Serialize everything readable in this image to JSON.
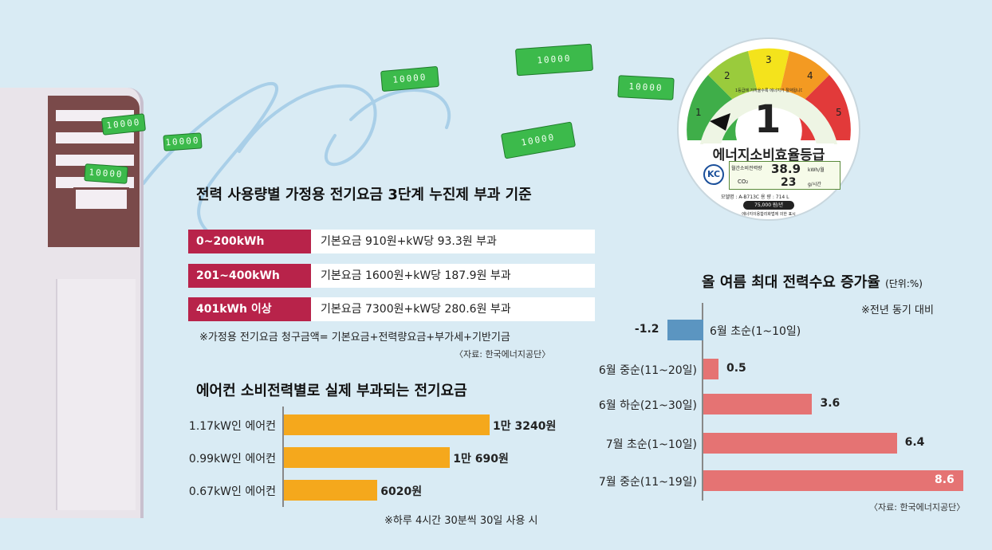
{
  "tariff": {
    "title": "전력 사용량별 가정용 전기요금 3단계 누진제 부과 기준",
    "tiers": [
      {
        "range": "0~200kWh",
        "desc": "기본요금 910원+kW당 93.3원 부과"
      },
      {
        "range": "201~400kWh",
        "desc": "기본요금 1600원+kW당 187.9원 부과"
      },
      {
        "range": "401kWh 이상",
        "desc": "기본요금 7300원+kW당 280.6원 부과"
      }
    ],
    "note": "※가정용 전기요금 청구금액= 기본요금+전력량요금+부가세+기반기금",
    "source": "〈자료: 한국에너지공단〉"
  },
  "ac_chart": {
    "title": "에어컨 소비전력별로 실제 부과되는 전기요금",
    "note": "※하루 4시간 30분씩 30일 사용 시"
  },
  "demand_chart": {
    "title": "올 여름 최대 전력수요 증가율",
    "unit": "(단위:%)",
    "subnote": "※전년 동기 대비",
    "source": "〈자료: 한국에너지공단〉"
  },
  "label": {
    "grades": [
      "1",
      "2",
      "3",
      "4",
      "5"
    ],
    "grade_colors": [
      "#3fae49",
      "#9acb3c",
      "#f4e31c",
      "#f39a22",
      "#e23a3a"
    ],
    "big_grade": "1",
    "arc_text": "1등급에 가까울수록 에너지가 절약됩니다.",
    "name": "에너지소비효율등급",
    "kc": "KC",
    "row1_label": "월간소비전력량",
    "row1_value": "38.9",
    "row1_unit": "kWh/월",
    "row2_label": "CO₂",
    "row2_value": "23",
    "row2_unit": "g/시간",
    "model": "모델명 : A-B713C  용 량 : 714 L",
    "cost": "75,000 원/년",
    "footer": "에너지이용합리화법에 의한 표시"
  },
  "bills": [
    "10000",
    "10000",
    "10000",
    "10000",
    "10000",
    "10000",
    "10000"
  ],
  "chart_data": [
    {
      "type": "bar",
      "title": "에어컨 소비전력별로 실제 부과되는 전기요금",
      "categories": [
        "1.17kW인 에어컨",
        "0.99kW인 에어컨",
        "0.67kW인 에어컨"
      ],
      "values": [
        13240,
        10690,
        6020
      ],
      "value_labels": [
        "1만 3240원",
        "1만 690원",
        "6020원"
      ],
      "colors": {
        "bar": "#f5a81c"
      }
    },
    {
      "type": "bar",
      "title": "올 여름 최대 전력수요 증가율",
      "categories": [
        "6월 초순(1~10일)",
        "6월 중순(11~20일)",
        "6월 하순(21~30일)",
        "7월 초순(1~10일)",
        "7월 중순(11~19일)"
      ],
      "values": [
        -1.2,
        0.5,
        3.6,
        6.4,
        8.6
      ],
      "value_labels": [
        "-1.2",
        "0.5",
        "3.6",
        "6.4",
        "8.6"
      ],
      "colors": {
        "negative": "#5b95c1",
        "positive": "#e57373"
      }
    }
  ]
}
